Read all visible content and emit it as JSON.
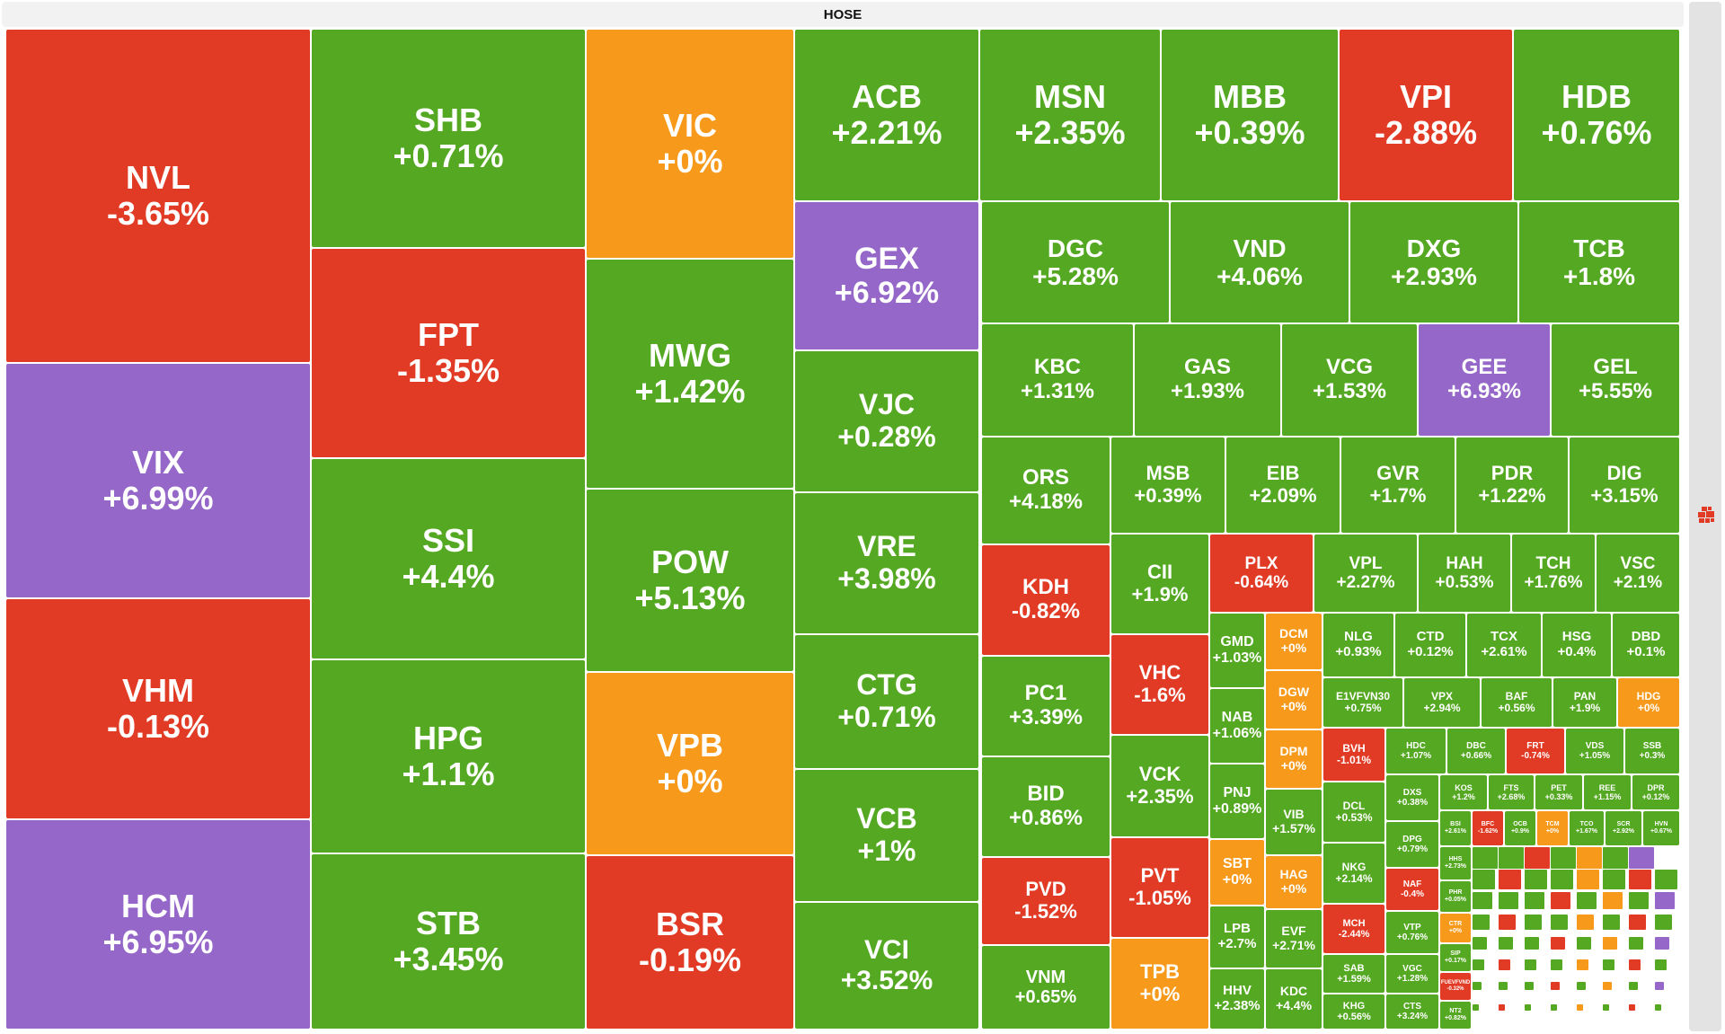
{
  "title": "HOSE",
  "colors": {
    "up": "#55a922",
    "down": "#e13b25",
    "ref": "#f7991a",
    "ceiling": "#9467c8"
  },
  "chart_data": {
    "type": "treemap",
    "title": "HOSE",
    "tiles": [
      {
        "ticker": "NVL",
        "change": "-3.65%",
        "value": -3.65,
        "status": "down"
      },
      {
        "ticker": "VIX",
        "change": "+6.99%",
        "value": 6.99,
        "status": "ceiling"
      },
      {
        "ticker": "VHM",
        "change": "-0.13%",
        "value": -0.13,
        "status": "down"
      },
      {
        "ticker": "HCM",
        "change": "+6.95%",
        "value": 6.95,
        "status": "ceiling"
      },
      {
        "ticker": "SHB",
        "change": "+0.71%",
        "value": 0.71,
        "status": "up"
      },
      {
        "ticker": "FPT",
        "change": "-1.35%",
        "value": -1.35,
        "status": "down"
      },
      {
        "ticker": "SSI",
        "change": "+4.4%",
        "value": 4.4,
        "status": "up"
      },
      {
        "ticker": "HPG",
        "change": "+1.1%",
        "value": 1.1,
        "status": "up"
      },
      {
        "ticker": "STB",
        "change": "+3.45%",
        "value": 3.45,
        "status": "up"
      },
      {
        "ticker": "VIC",
        "change": "+0%",
        "value": 0,
        "status": "ref"
      },
      {
        "ticker": "MWG",
        "change": "+1.42%",
        "value": 1.42,
        "status": "up"
      },
      {
        "ticker": "POW",
        "change": "+5.13%",
        "value": 5.13,
        "status": "up"
      },
      {
        "ticker": "VPB",
        "change": "+0%",
        "value": 0,
        "status": "ref"
      },
      {
        "ticker": "BSR",
        "change": "-0.19%",
        "value": -0.19,
        "status": "down"
      },
      {
        "ticker": "ACB",
        "change": "+2.21%",
        "value": 2.21,
        "status": "up"
      },
      {
        "ticker": "GEX",
        "change": "+6.92%",
        "value": 6.92,
        "status": "ceiling"
      },
      {
        "ticker": "VJC",
        "change": "+0.28%",
        "value": 0.28,
        "status": "up"
      },
      {
        "ticker": "VRE",
        "change": "+3.98%",
        "value": 3.98,
        "status": "up"
      },
      {
        "ticker": "CTG",
        "change": "+0.71%",
        "value": 0.71,
        "status": "up"
      },
      {
        "ticker": "VCB",
        "change": "+1%",
        "value": 1,
        "status": "up"
      },
      {
        "ticker": "VCI",
        "change": "+3.52%",
        "value": 3.52,
        "status": "up"
      },
      {
        "ticker": "MSN",
        "change": "+2.35%",
        "value": 2.35,
        "status": "up"
      },
      {
        "ticker": "MBB",
        "change": "+0.39%",
        "value": 0.39,
        "status": "up"
      },
      {
        "ticker": "VPI",
        "change": "-2.88%",
        "value": -2.88,
        "status": "down"
      },
      {
        "ticker": "HDB",
        "change": "+0.76%",
        "value": 0.76,
        "status": "up"
      },
      {
        "ticker": "DGC",
        "change": "+5.28%",
        "value": 5.28,
        "status": "up"
      },
      {
        "ticker": "VND",
        "change": "+4.06%",
        "value": 4.06,
        "status": "up"
      },
      {
        "ticker": "DXG",
        "change": "+2.93%",
        "value": 2.93,
        "status": "up"
      },
      {
        "ticker": "TCB",
        "change": "+1.8%",
        "value": 1.8,
        "status": "up"
      },
      {
        "ticker": "KBC",
        "change": "+1.31%",
        "value": 1.31,
        "status": "up"
      },
      {
        "ticker": "GAS",
        "change": "+1.93%",
        "value": 1.93,
        "status": "up"
      },
      {
        "ticker": "VCG",
        "change": "+1.53%",
        "value": 1.53,
        "status": "up"
      },
      {
        "ticker": "GEE",
        "change": "+6.93%",
        "value": 6.93,
        "status": "ceiling"
      },
      {
        "ticker": "GEL",
        "change": "+5.55%",
        "value": 5.55,
        "status": "up"
      },
      {
        "ticker": "ORS",
        "change": "+4.18%",
        "value": 4.18,
        "status": "up"
      },
      {
        "ticker": "MSB",
        "change": "+0.39%",
        "value": 0.39,
        "status": "up"
      },
      {
        "ticker": "EIB",
        "change": "+2.09%",
        "value": 2.09,
        "status": "up"
      },
      {
        "ticker": "GVR",
        "change": "+1.7%",
        "value": 1.7,
        "status": "up"
      },
      {
        "ticker": "PDR",
        "change": "+1.22%",
        "value": 1.22,
        "status": "up"
      },
      {
        "ticker": "DIG",
        "change": "+3.15%",
        "value": 3.15,
        "status": "up"
      },
      {
        "ticker": "KDH",
        "change": "-0.82%",
        "value": -0.82,
        "status": "down"
      },
      {
        "ticker": "PC1",
        "change": "+3.39%",
        "value": 3.39,
        "status": "up"
      },
      {
        "ticker": "BID",
        "change": "+0.86%",
        "value": 0.86,
        "status": "up"
      },
      {
        "ticker": "PVD",
        "change": "-1.52%",
        "value": -1.52,
        "status": "down"
      },
      {
        "ticker": "VNM",
        "change": "+0.65%",
        "value": 0.65,
        "status": "up"
      },
      {
        "ticker": "CII",
        "change": "+1.9%",
        "value": 1.9,
        "status": "up"
      },
      {
        "ticker": "VHC",
        "change": "-1.6%",
        "value": -1.6,
        "status": "down"
      },
      {
        "ticker": "VCK",
        "change": "+2.35%",
        "value": 2.35,
        "status": "up"
      },
      {
        "ticker": "PVT",
        "change": "-1.05%",
        "value": -1.05,
        "status": "down"
      },
      {
        "ticker": "TPB",
        "change": "+0%",
        "value": 0,
        "status": "ref"
      },
      {
        "ticker": "PLX",
        "change": "-0.64%",
        "value": -0.64,
        "status": "down"
      },
      {
        "ticker": "VPL",
        "change": "+2.27%",
        "value": 2.27,
        "status": "up"
      },
      {
        "ticker": "HAH",
        "change": "+0.53%",
        "value": 0.53,
        "status": "up"
      },
      {
        "ticker": "TCH",
        "change": "+1.76%",
        "value": 1.76,
        "status": "up"
      },
      {
        "ticker": "VSC",
        "change": "+2.1%",
        "value": 2.1,
        "status": "up"
      },
      {
        "ticker": "GMD",
        "change": "+1.03%",
        "value": 1.03,
        "status": "up"
      },
      {
        "ticker": "NAB",
        "change": "+1.06%",
        "value": 1.06,
        "status": "up"
      },
      {
        "ticker": "PNJ",
        "change": "+0.89%",
        "value": 0.89,
        "status": "up"
      },
      {
        "ticker": "SBT",
        "change": "+0%",
        "value": 0,
        "status": "ref"
      },
      {
        "ticker": "LPB",
        "change": "+2.7%",
        "value": 2.7,
        "status": "up"
      },
      {
        "ticker": "HHV",
        "change": "+2.38%",
        "value": 2.38,
        "status": "up"
      },
      {
        "ticker": "DCM",
        "change": "+0%",
        "value": 0,
        "status": "ref"
      },
      {
        "ticker": "DGW",
        "change": "+0%",
        "value": 0,
        "status": "ref"
      },
      {
        "ticker": "DPM",
        "change": "+0%",
        "value": 0,
        "status": "ref"
      },
      {
        "ticker": "VIB",
        "change": "+1.57%",
        "value": 1.57,
        "status": "up"
      },
      {
        "ticker": "HAG",
        "change": "+0%",
        "value": 0,
        "status": "ref"
      },
      {
        "ticker": "EVF",
        "change": "+2.71%",
        "value": 2.71,
        "status": "up"
      },
      {
        "ticker": "KDC",
        "change": "+4.4%",
        "value": 4.4,
        "status": "up"
      },
      {
        "ticker": "NLG",
        "change": "+0.93%",
        "value": 0.93,
        "status": "up"
      },
      {
        "ticker": "CTD",
        "change": "+0.12%",
        "value": 0.12,
        "status": "up"
      },
      {
        "ticker": "TCX",
        "change": "+2.61%",
        "value": 2.61,
        "status": "up"
      },
      {
        "ticker": "HSG",
        "change": "+0.4%",
        "value": 0.4,
        "status": "up"
      },
      {
        "ticker": "DBD",
        "change": "+0.1%",
        "value": 0.1,
        "status": "up"
      },
      {
        "ticker": "E1VFVN30",
        "change": "+0.75%",
        "value": 0.75,
        "status": "up"
      },
      {
        "ticker": "VPX",
        "change": "+2.94%",
        "value": 2.94,
        "status": "up"
      },
      {
        "ticker": "BAF",
        "change": "+0.56%",
        "value": 0.56,
        "status": "up"
      },
      {
        "ticker": "PAN",
        "change": "+1.9%",
        "value": 1.9,
        "status": "up"
      },
      {
        "ticker": "HDG",
        "change": "+0%",
        "value": 0,
        "status": "ref"
      },
      {
        "ticker": "BVH",
        "change": "-1.01%",
        "value": -1.01,
        "status": "down"
      },
      {
        "ticker": "DCL",
        "change": "+0.53%",
        "value": 0.53,
        "status": "up"
      },
      {
        "ticker": "NKG",
        "change": "+2.14%",
        "value": 2.14,
        "status": "up"
      },
      {
        "ticker": "MCH",
        "change": "-2.44%",
        "value": -2.44,
        "status": "down"
      },
      {
        "ticker": "SAB",
        "change": "+1.59%",
        "value": 1.59,
        "status": "up"
      },
      {
        "ticker": "KHG",
        "change": "+0.56%",
        "value": 0.56,
        "status": "up"
      },
      {
        "ticker": "HDC",
        "change": "+1.07%",
        "value": 1.07,
        "status": "up"
      },
      {
        "ticker": "DBC",
        "change": "+0.66%",
        "value": 0.66,
        "status": "up"
      },
      {
        "ticker": "FRT",
        "change": "-0.74%",
        "value": -0.74,
        "status": "down"
      },
      {
        "ticker": "VDS",
        "change": "+1.05%",
        "value": 1.05,
        "status": "up"
      },
      {
        "ticker": "SSB",
        "change": "+0.3%",
        "value": 0.3,
        "status": "up"
      },
      {
        "ticker": "DXS",
        "change": "+0.38%",
        "value": 0.38,
        "status": "up"
      },
      {
        "ticker": "DPG",
        "change": "+0.79%",
        "value": 0.79,
        "status": "up"
      },
      {
        "ticker": "NAF",
        "change": "-0.4%",
        "value": -0.4,
        "status": "down"
      },
      {
        "ticker": "VTP",
        "change": "+0.76%",
        "value": 0.76,
        "status": "up"
      },
      {
        "ticker": "VGC",
        "change": "+1.28%",
        "value": 1.28,
        "status": "up"
      },
      {
        "ticker": "CTS",
        "change": "+3.24%",
        "value": 3.24,
        "status": "up"
      },
      {
        "ticker": "KOS",
        "change": "+1.2%",
        "value": 1.2,
        "status": "up"
      },
      {
        "ticker": "FTS",
        "change": "+2.68%",
        "value": 2.68,
        "status": "up"
      },
      {
        "ticker": "PET",
        "change": "+0.33%",
        "value": 0.33,
        "status": "up"
      },
      {
        "ticker": "REE",
        "change": "+1.15%",
        "value": 1.15,
        "status": "up"
      },
      {
        "ticker": "DPR",
        "change": "+0.12%",
        "value": 0.12,
        "status": "up"
      },
      {
        "ticker": "BSI",
        "change": "+2.61%",
        "value": 2.61,
        "status": "up"
      },
      {
        "ticker": "BFC",
        "change": "-1.62%",
        "value": -1.62,
        "status": "down"
      },
      {
        "ticker": "OCB",
        "change": "+0.9%",
        "value": 0.9,
        "status": "up"
      },
      {
        "ticker": "TCM",
        "change": "+0%",
        "value": 0,
        "status": "ref"
      },
      {
        "ticker": "TCO",
        "change": "+1.67%",
        "value": 1.67,
        "status": "up"
      },
      {
        "ticker": "SCR",
        "change": "+2.92%",
        "value": 2.92,
        "status": "up"
      },
      {
        "ticker": "HVN",
        "change": "+0.67%",
        "value": 0.67,
        "status": "up"
      },
      {
        "ticker": "HHS",
        "change": "+2.73%",
        "value": 2.73,
        "status": "up"
      },
      {
        "ticker": "PHR",
        "change": "+0.05%",
        "value": 0.05,
        "status": "up"
      },
      {
        "ticker": "CTR",
        "change": "+0%",
        "value": 0,
        "status": "ref"
      },
      {
        "ticker": "SIP",
        "change": "+0.17%",
        "value": 0.17,
        "status": "up"
      },
      {
        "ticker": "FUEVFVND",
        "change": "-0.32%",
        "value": -0.32,
        "status": "down"
      },
      {
        "ticker": "NT2",
        "change": "+0.82%",
        "value": 0.82,
        "status": "up"
      }
    ]
  }
}
